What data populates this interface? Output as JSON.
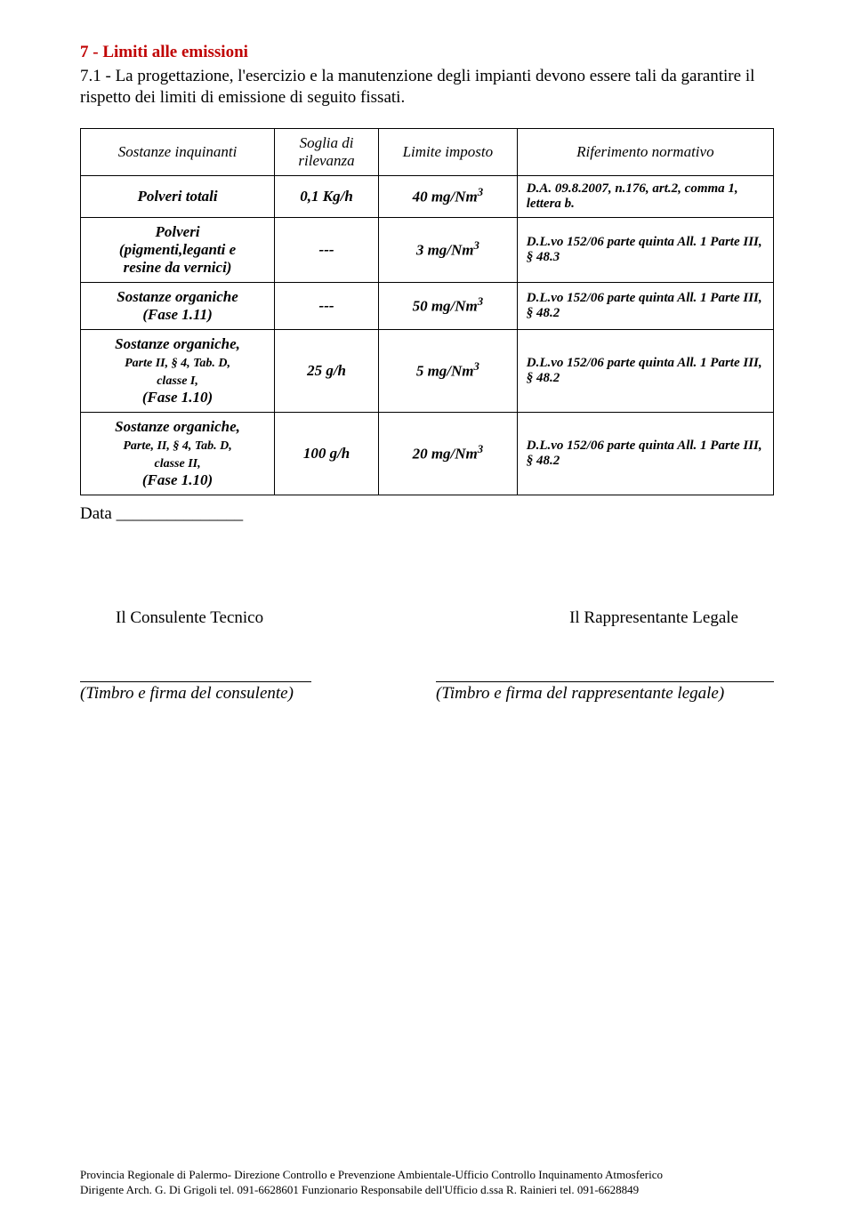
{
  "text_color": "#000000",
  "accent_color": "#c00000",
  "background_color": "#ffffff",
  "section": {
    "title": "7 - Limiti alle emissioni",
    "intro": "7.1 - La progettazione, l'esercizio e la manutenzione degli impianti devono essere tali da garantire il rispetto dei limiti di emissione di seguito fissati."
  },
  "table": {
    "headers": {
      "c1": "Sostanze inquinanti",
      "c2": "Soglia di rilevanza",
      "c3": "Limite imposto",
      "c4": "Riferimento normativo"
    },
    "rows": [
      {
        "name_html": "Polveri totali",
        "threshold": "0,1 Kg/h",
        "limit_html": "40 mg/Nm<sup>3</sup>",
        "ref": "D.A. 09.8.2007, n.176, art.2, comma 1, lettera b."
      },
      {
        "name_html": "Polveri<br>(pigmenti,leganti e<br>resine da vernici)",
        "threshold": "---",
        "limit_html": "3 mg/Nm<sup>3</sup>",
        "ref": "D.L.vo 152/06 parte quinta All. 1 Parte III, § 48.3"
      },
      {
        "name_html": "Sostanze organiche<br>(Fase 1.11)",
        "threshold": "---",
        "limit_html": "50 mg/Nm<sup>3</sup>",
        "ref": "D.L.vo 152/06 parte quinta All. 1 Parte III, § 48.2"
      },
      {
        "name_html": "<span class=\"normal\">Sostanze organiche,</span><br><span class=\"small\">Parte II, § 4, Tab. D,<br>classe I,</span><br><span class=\"normal\">(Fase 1.10)</span>",
        "threshold": "25 g/h",
        "limit_html": "5 mg/Nm<sup>3</sup>",
        "ref": "D.L.vo 152/06 parte quinta All. 1 Parte III, § 48.2"
      },
      {
        "name_html": "<span class=\"normal\">Sostanze organiche,</span><br><span class=\"small\">Parte,  II, § 4, Tab. D,<br>classe II,</span><br><span class=\"normal\">(Fase 1.10)</span>",
        "threshold": "100 g/h",
        "limit_html": "20 mg/Nm<sup>3</sup>",
        "ref": "D.L.vo 152/06 parte quinta All. 1 Parte III, § 48.2"
      }
    ]
  },
  "data_label": "Data _______________",
  "signatures": {
    "left_title": "Il Consulente Tecnico",
    "right_title": "Il Rappresentante Legale",
    "left_caption": "(Timbro e firma del consulente)",
    "right_caption": "(Timbro e firma del rappresentante legale)"
  },
  "footer": {
    "line1": "Provincia Regionale di Palermo- Direzione Controllo e Prevenzione Ambientale-Ufficio Controllo Inquinamento Atmosferico",
    "line2": "Dirigente Arch. G. Di Grigoli tel. 091-6628601 Funzionario Responsabile dell'Ufficio d.ssa R. Rainieri tel. 091-6628849"
  }
}
